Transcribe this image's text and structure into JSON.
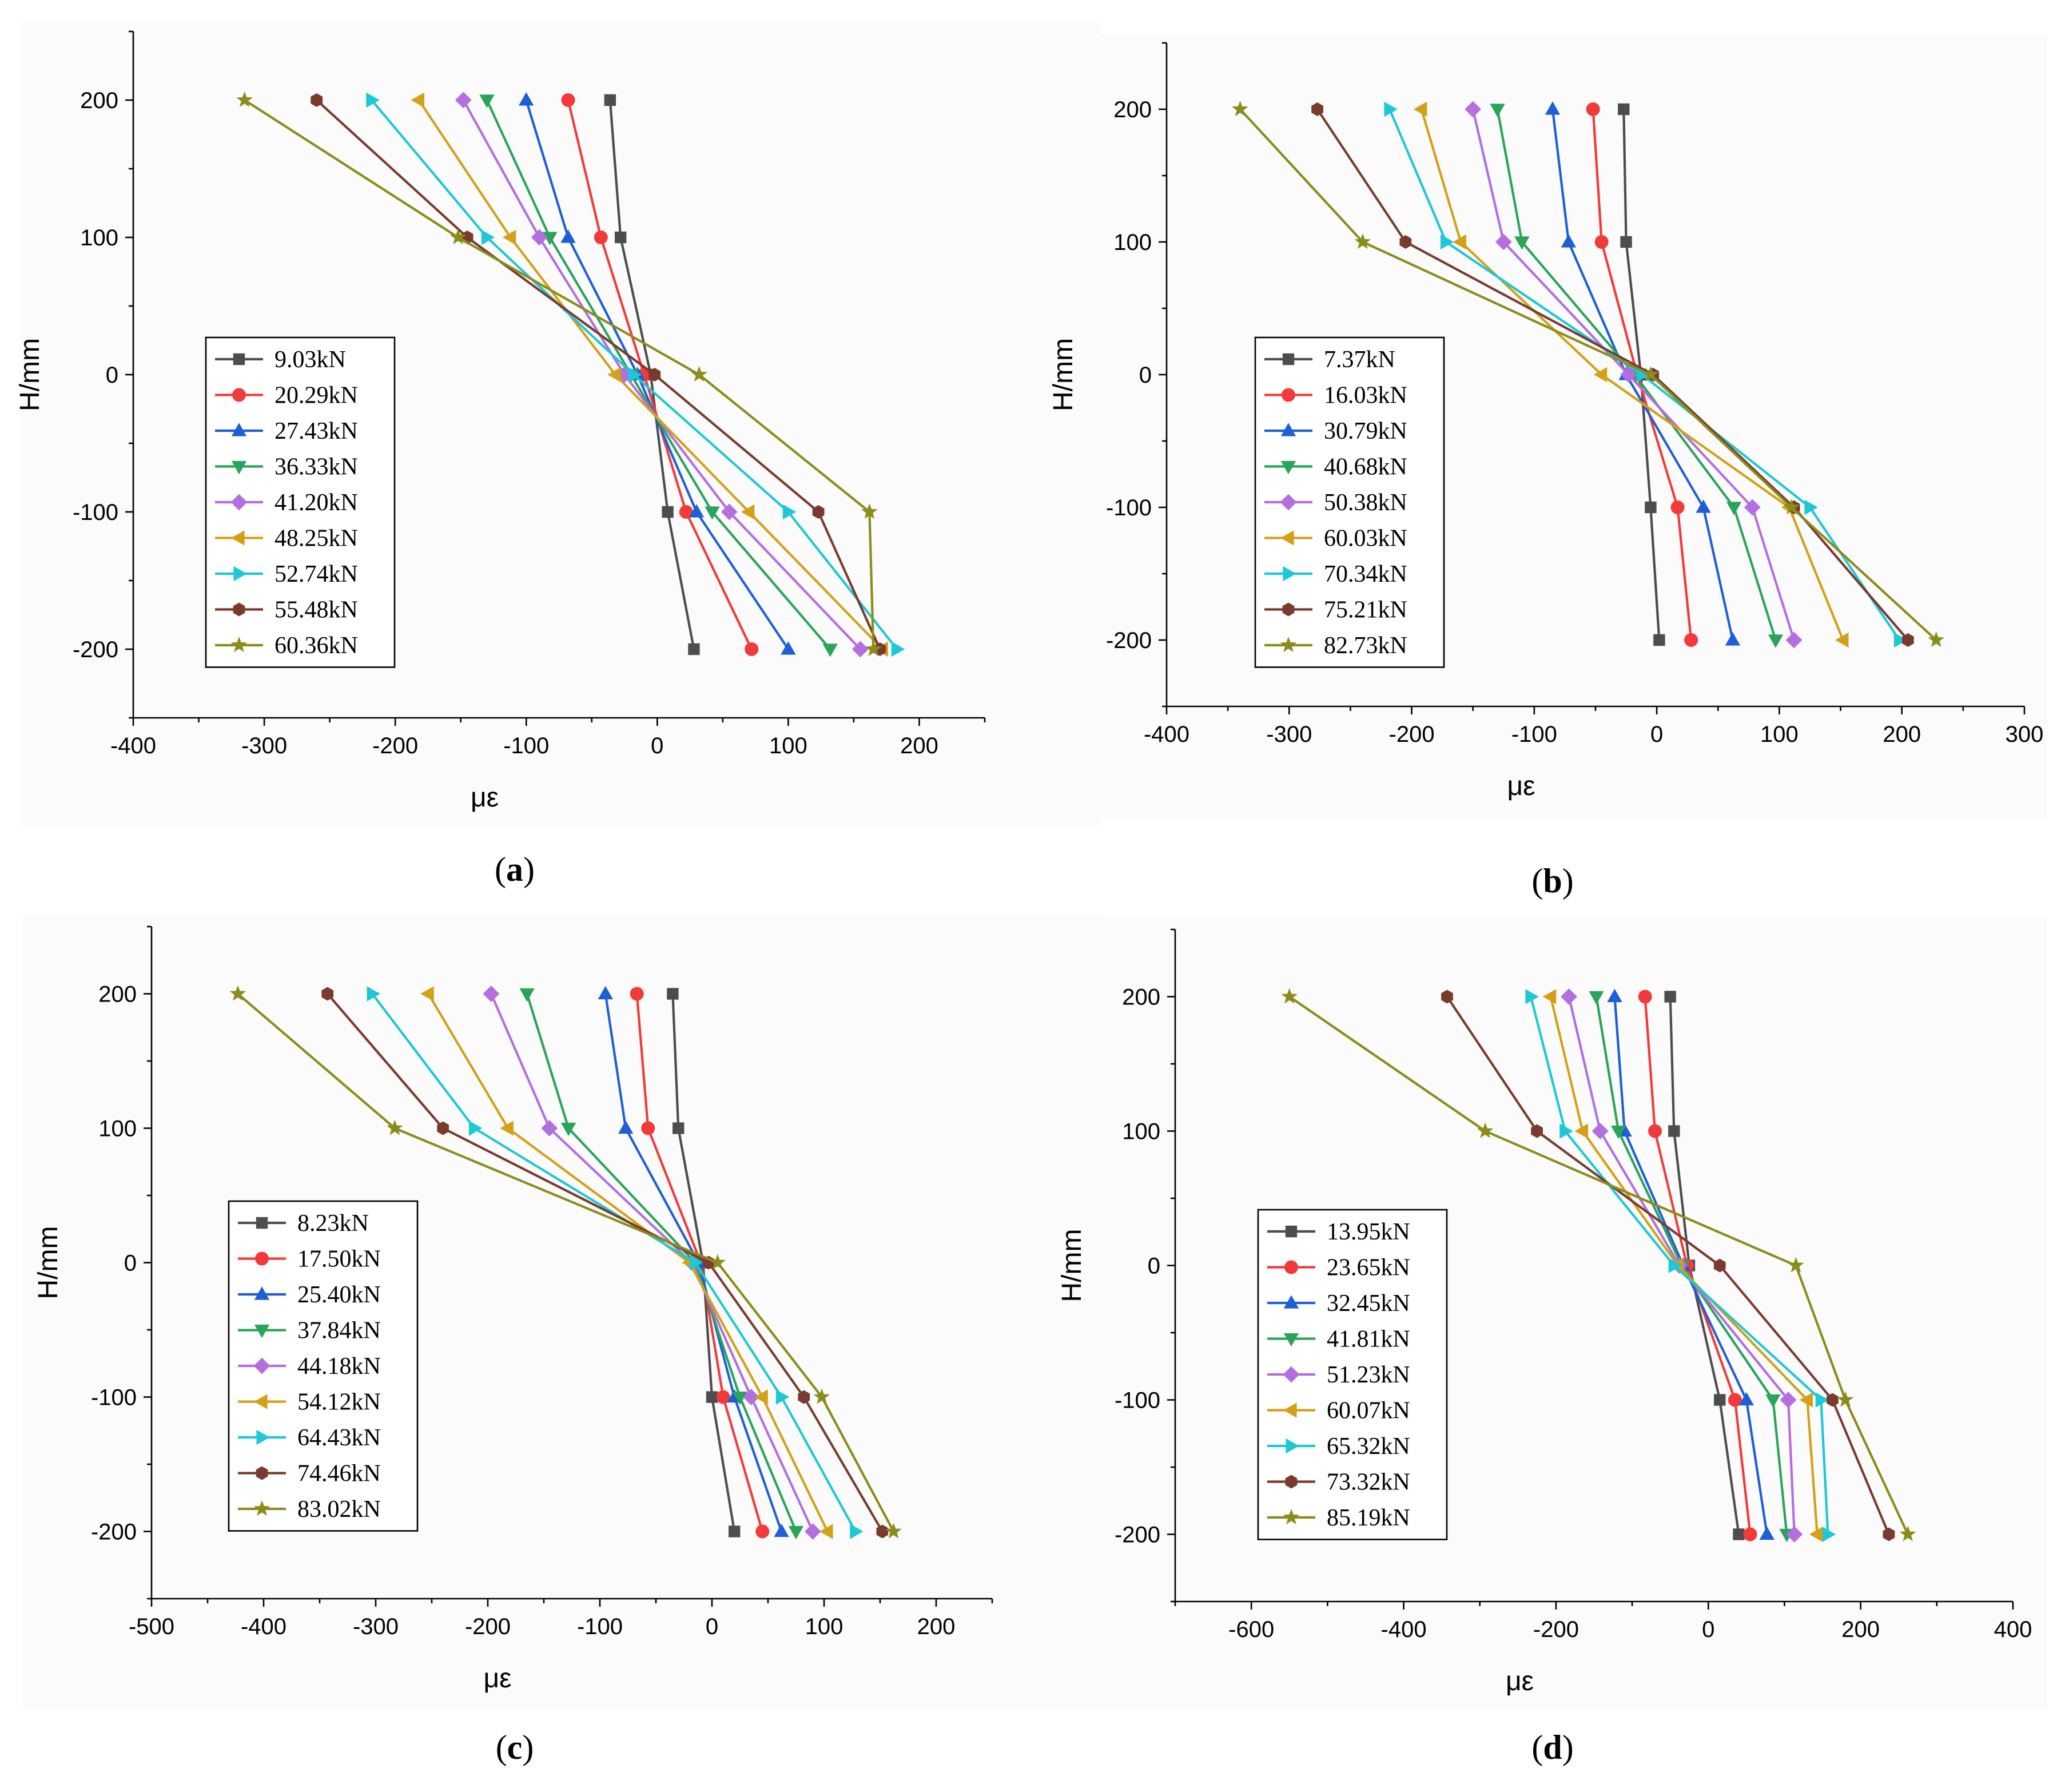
{
  "chart_data": [
    {
      "type": "line",
      "caption_letter": "a",
      "xlabel": "με",
      "ylabel": "H/mm",
      "xlim": [
        -400,
        250
      ],
      "ylim": [
        -250,
        250
      ],
      "x_ticks": [
        "-400",
        "-300",
        "-200",
        "-100",
        "0",
        "100",
        "200"
      ],
      "y_ticks": [
        "200",
        "100",
        "0",
        "-100",
        "-200"
      ],
      "heights": [
        200,
        100,
        0,
        -100,
        -200
      ],
      "series": [
        {
          "name": "9.03kN",
          "values": [
            -36,
            -28,
            -5,
            8,
            28
          ]
        },
        {
          "name": "20.29kN",
          "values": [
            -68,
            -43,
            -10,
            22,
            72
          ]
        },
        {
          "name": "27.43kN",
          "values": [
            -100,
            -68,
            -15,
            30,
            100
          ]
        },
        {
          "name": "36.33kN",
          "values": [
            -130,
            -82,
            -20,
            42,
            132
          ]
        },
        {
          "name": "41.20kN",
          "values": [
            -148,
            -90,
            -25,
            55,
            155
          ]
        },
        {
          "name": "48.25kN",
          "values": [
            -182,
            -112,
            -32,
            70,
            172
          ]
        },
        {
          "name": "52.74kN",
          "values": [
            -218,
            -130,
            -18,
            100,
            183
          ]
        },
        {
          "name": "55.48kN",
          "values": [
            -260,
            -145,
            -2,
            123,
            170
          ]
        },
        {
          "name": "60.36kN",
          "values": [
            -315,
            -152,
            32,
            162,
            165
          ]
        }
      ]
    },
    {
      "type": "line",
      "caption_letter": "b",
      "xlabel": "με",
      "ylabel": "H/mm",
      "xlim": [
        -400,
        300
      ],
      "ylim": [
        -250,
        250
      ],
      "x_ticks": [
        "-400",
        "-300",
        "-200",
        "-100",
        "0",
        "100",
        "200",
        "300"
      ],
      "y_ticks": [
        "200",
        "100",
        "0",
        "-100",
        "-200"
      ],
      "heights": [
        200,
        100,
        0,
        -100,
        -200
      ],
      "series": [
        {
          "name": "7.37kN",
          "values": [
            -27,
            -25,
            -13,
            -5,
            2
          ]
        },
        {
          "name": "16.03kN",
          "values": [
            -52,
            -45,
            -16,
            17,
            28
          ]
        },
        {
          "name": "30.79kN",
          "values": [
            -85,
            -72,
            -25,
            38,
            62
          ]
        },
        {
          "name": "40.68kN",
          "values": [
            -130,
            -110,
            -18,
            63,
            97
          ]
        },
        {
          "name": "50.38kN",
          "values": [
            -150,
            -125,
            -23,
            78,
            112
          ]
        },
        {
          "name": "60.03kN",
          "values": [
            -192,
            -160,
            -45,
            108,
            152
          ]
        },
        {
          "name": "70.34kN",
          "values": [
            -218,
            -172,
            -12,
            125,
            198
          ]
        },
        {
          "name": "75.21kN",
          "values": [
            -277,
            -205,
            -3,
            112,
            205
          ]
        },
        {
          "name": "82.73kN",
          "values": [
            -340,
            -240,
            -5,
            110,
            228
          ]
        }
      ]
    },
    {
      "type": "line",
      "caption_letter": "c",
      "xlabel": "με",
      "ylabel": "H/mm",
      "xlim": [
        -500,
        250
      ],
      "ylim": [
        -250,
        250
      ],
      "x_ticks": [
        "-500",
        "-400",
        "-300",
        "-200",
        "-100",
        "0",
        "100",
        "200"
      ],
      "y_ticks": [
        "200",
        "100",
        "0",
        "-100",
        "-200"
      ],
      "heights": [
        200,
        100,
        0,
        -100,
        -200
      ],
      "series": [
        {
          "name": "8.23kN",
          "values": [
            -35,
            -30,
            -8,
            0,
            20
          ]
        },
        {
          "name": "17.50kN",
          "values": [
            -67,
            -57,
            -10,
            10,
            45
          ]
        },
        {
          "name": "25.40kN",
          "values": [
            -95,
            -77,
            -12,
            20,
            62
          ]
        },
        {
          "name": "37.84kN",
          "values": [
            -165,
            -128,
            -15,
            25,
            75
          ]
        },
        {
          "name": "44.18kN",
          "values": [
            -197,
            -145,
            -18,
            35,
            90
          ]
        },
        {
          "name": "54.12kN",
          "values": [
            -253,
            -182,
            -20,
            45,
            103
          ]
        },
        {
          "name": "64.43kN",
          "values": [
            -303,
            -212,
            -15,
            62,
            128
          ]
        },
        {
          "name": "74.46kN",
          "values": [
            -343,
            -240,
            -3,
            82,
            152
          ]
        },
        {
          "name": "83.02kN",
          "values": [
            -423,
            -283,
            5,
            98,
            162
          ]
        }
      ]
    },
    {
      "type": "line",
      "caption_letter": "d",
      "xlabel": "με",
      "ylabel": "H/mm",
      "xlim": [
        -700,
        400
      ],
      "ylim": [
        -250,
        250
      ],
      "x_ticks": [
        "-600",
        "-400",
        "-200",
        "0",
        "200",
        "400"
      ],
      "y_ticks": [
        "200",
        "100",
        "0",
        "-100",
        "-200"
      ],
      "heights": [
        200,
        100,
        0,
        -100,
        -200
      ],
      "series": [
        {
          "name": "13.95kN",
          "values": [
            -50,
            -45,
            -25,
            15,
            40
          ]
        },
        {
          "name": "23.65kN",
          "values": [
            -83,
            -70,
            -28,
            35,
            55
          ]
        },
        {
          "name": "32.45kN",
          "values": [
            -123,
            -110,
            -33,
            50,
            77
          ]
        },
        {
          "name": "41.81kN",
          "values": [
            -147,
            -118,
            -35,
            85,
            103
          ]
        },
        {
          "name": "51.23kN",
          "values": [
            -183,
            -142,
            -38,
            105,
            113
          ]
        },
        {
          "name": "60.07kN",
          "values": [
            -207,
            -165,
            -40,
            130,
            143
          ]
        },
        {
          "name": "65.32kN",
          "values": [
            -233,
            -188,
            -45,
            148,
            157
          ]
        },
        {
          "name": "73.32kN",
          "values": [
            -343,
            -225,
            15,
            163,
            237
          ]
        },
        {
          "name": "85.19kN",
          "values": [
            -550,
            -293,
            115,
            180,
            262
          ]
        }
      ]
    }
  ],
  "series_colors": [
    "#4d4d4d",
    "#f23a3a",
    "#1f5fd6",
    "#2aa45a",
    "#b36ee0",
    "#d4a017",
    "#1ec8d6",
    "#7a3b2e",
    "#8c8c1a"
  ],
  "series_markers": [
    "square-icon",
    "circle-icon",
    "triangle-up-icon",
    "triangle-down-icon",
    "diamond-icon",
    "triangle-left-icon",
    "triangle-right-icon",
    "hexagon-icon",
    "star-icon"
  ]
}
